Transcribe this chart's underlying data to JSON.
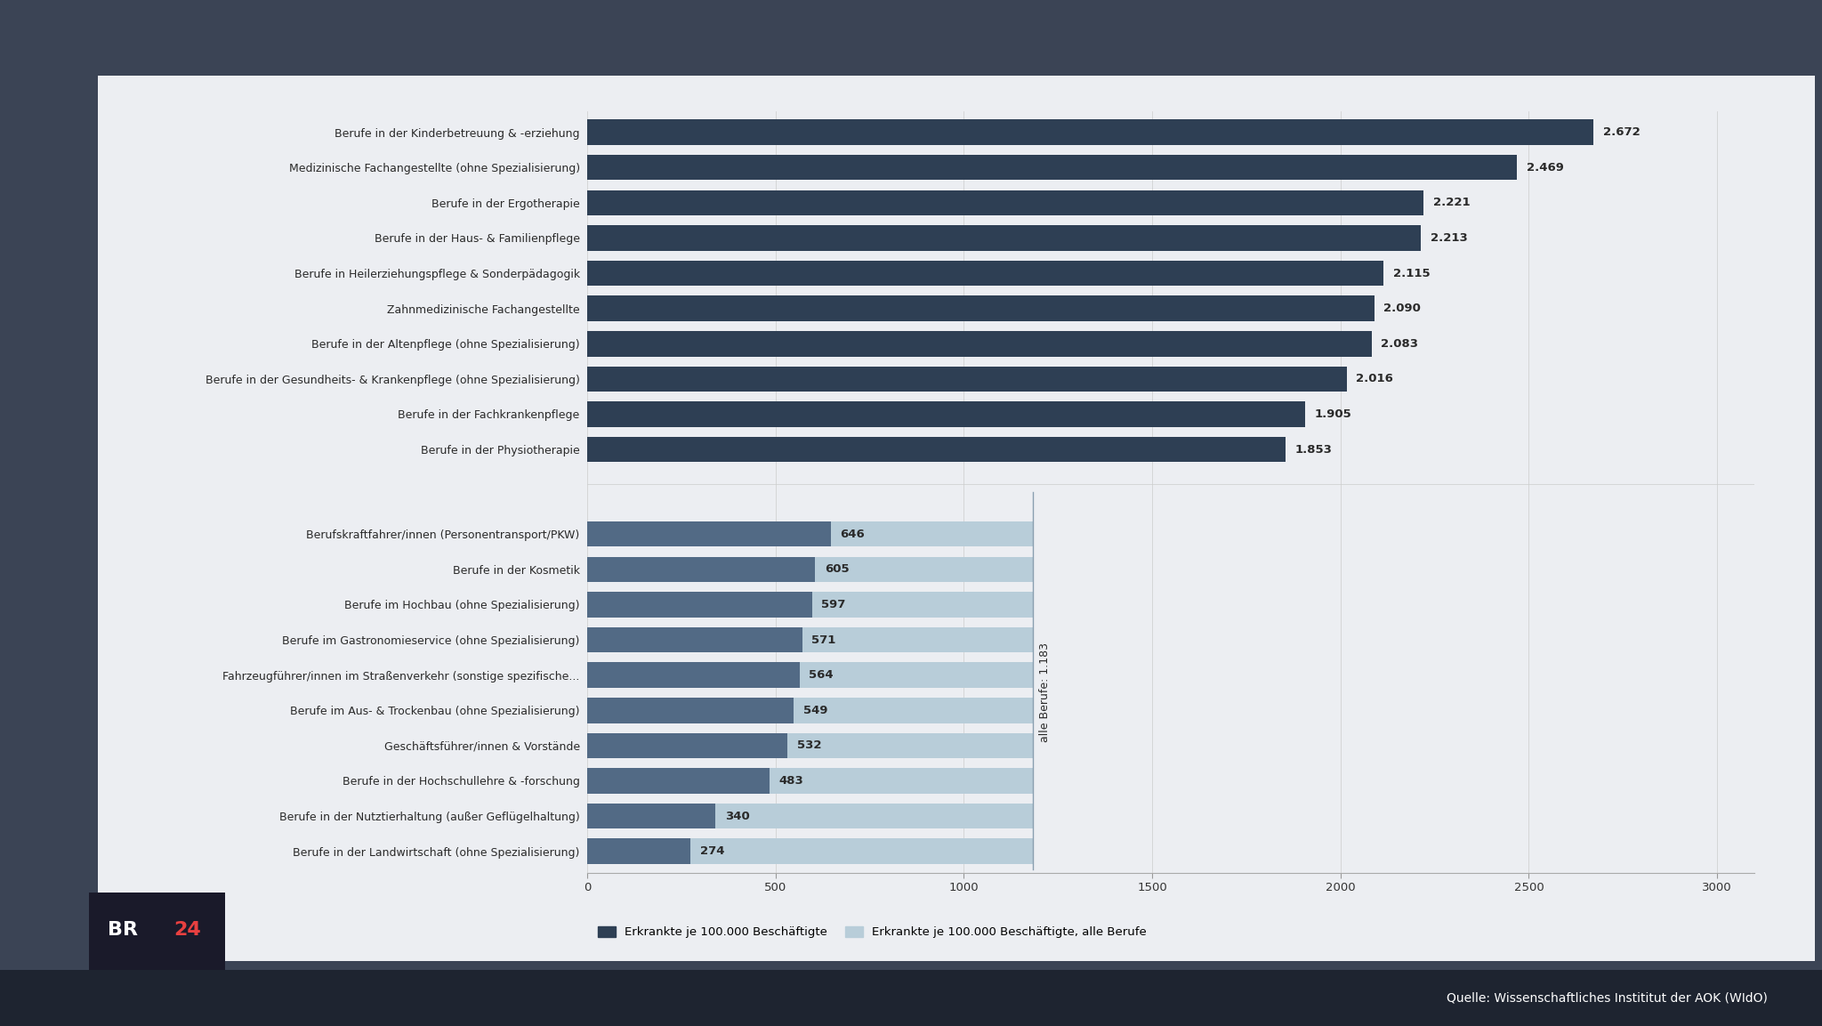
{
  "top_categories": [
    "Berufe in der Kinderbetreuung & -erziehung",
    "Medizinische Fachangestellte (ohne Spezialisierung)",
    "Berufe in der Ergotherapie",
    "Berufe in der Haus- & Familienpflege",
    "Berufe in Heilerziehungspflege & Sonderpädagogik",
    "Zahnmedizinische Fachangestellte",
    "Berufe in der Altenpflege (ohne Spezialisierung)",
    "Berufe in der Gesundheits- & Krankenpflege (ohne Spezialisierung)",
    "Berufe in der Fachkrankenpflege",
    "Berufe in der Physiotherapie"
  ],
  "top_values": [
    2672,
    2469,
    2221,
    2213,
    2115,
    2090,
    2083,
    2016,
    1905,
    1853
  ],
  "top_label_values": [
    "2.672",
    "2.469",
    "2.221",
    "2.213",
    "2.115",
    "2.090",
    "2.083",
    "2.016",
    "1.905",
    "1.853"
  ],
  "bottom_categories": [
    "Berufskraftfahrer/innen (Personentransport/PKW)",
    "Berufe in der Kosmetik",
    "Berufe im Hochbau (ohne Spezialisierung)",
    "Berufe im Gastronomieservice (ohne Spezialisierung)",
    "Fahrzeugführer/innen im Straßenverkehr (sonstige spezifische...",
    "Berufe im Aus- & Trockenbau (ohne Spezialisierung)",
    "Geschäftsführer/innen & Vorstände",
    "Berufe in der Hochschullehre & -forschung",
    "Berufe in der Nutztierhaltung (außer Geflügelhaltung)",
    "Berufe in der Landwirtschaft (ohne Spezialisierung)"
  ],
  "bottom_values": [
    646,
    605,
    597,
    571,
    564,
    549,
    532,
    483,
    340,
    274
  ],
  "bottom_label_values": [
    "646",
    "605",
    "597",
    "571",
    "564",
    "549",
    "532",
    "483",
    "340",
    "274"
  ],
  "avg_value": 1183,
  "avg_label": "alle Berufe: 1.183",
  "dark_bar_color": "#2e3f54",
  "medium_bar_color": "#526a85",
  "light_bar_color": "#b8cdd9",
  "background_color": "#eceef2",
  "outer_background": "#3b4455",
  "panel_background": "#eceef2",
  "xlabel_ticks": [
    0,
    500,
    1000,
    1500,
    2000,
    2500,
    3000
  ],
  "xlim": [
    0,
    3100
  ],
  "legend_dark_label": "Erkrankte je 100.000 Beschäftigte",
  "legend_light_label": "Erkrankte je 100.000 Beschäftigte, alle Berufe",
  "source_text": "Quelle: Wissenschaftliches Instititut der AOK (WIdO)"
}
